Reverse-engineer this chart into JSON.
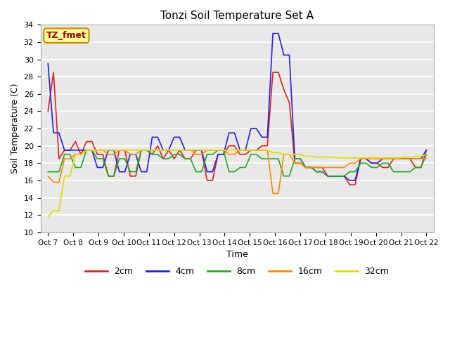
{
  "title": "Tonzi Soil Temperature Set A",
  "xlabel": "Time",
  "ylabel": "Soil Temperature (C)",
  "ylim": [
    10,
    34
  ],
  "yticks": [
    10,
    12,
    14,
    16,
    18,
    20,
    22,
    24,
    26,
    28,
    30,
    32,
    34
  ],
  "background_color": "#e8e8e8",
  "annotation_text": "TZ_fmet",
  "annotation_bg": "#ffff99",
  "annotation_border": "#cc8800",
  "annotation_text_color": "#990000",
  "x_labels": [
    "Oct 7",
    "Oct 8",
    "Oct 9",
    "Oct 10",
    "Oct 11",
    "Oct 12",
    "Oct 13",
    "Oct 14",
    "Oct 15",
    "Oct 16",
    "Oct 17",
    "Oct 18",
    "Oct 19",
    "Oct 20",
    "Oct 21",
    "Oct 22"
  ],
  "series": {
    "2cm": {
      "color": "#dd2222",
      "lw": 1.2
    },
    "4cm": {
      "color": "#2222dd",
      "lw": 1.2
    },
    "8cm": {
      "color": "#22aa22",
      "lw": 1.2
    },
    "16cm": {
      "color": "#ff8800",
      "lw": 1.2
    },
    "32cm": {
      "color": "#dddd00",
      "lw": 1.2
    }
  },
  "data_2cm": [
    24.0,
    28.5,
    18.5,
    19.5,
    19.5,
    20.5,
    19.0,
    20.5,
    20.5,
    19.0,
    19.0,
    16.5,
    16.5,
    19.5,
    19.5,
    16.5,
    16.5,
    19.5,
    19.5,
    19.0,
    20.0,
    18.5,
    19.5,
    18.5,
    19.5,
    18.5,
    18.5,
    19.5,
    19.5,
    16.0,
    16.0,
    19.0,
    19.0,
    20.0,
    20.0,
    19.0,
    19.0,
    19.5,
    19.5,
    20.0,
    20.0,
    28.5,
    28.5,
    26.5,
    25.0,
    18.0,
    18.0,
    17.5,
    17.5,
    17.5,
    17.5,
    16.5,
    16.5,
    16.5,
    16.5,
    15.5,
    15.5,
    18.5,
    18.5,
    18.0,
    18.0,
    17.5,
    17.5,
    18.5,
    18.5,
    18.5,
    18.5,
    17.5,
    17.5,
    19.5
  ],
  "data_4cm": [
    29.5,
    21.5,
    21.5,
    19.5,
    19.5,
    19.5,
    19.5,
    19.5,
    19.5,
    17.5,
    17.5,
    19.5,
    19.5,
    17.0,
    17.0,
    19.0,
    19.0,
    17.0,
    17.0,
    21.0,
    21.0,
    19.5,
    19.5,
    21.0,
    21.0,
    19.5,
    19.5,
    19.5,
    19.5,
    17.0,
    17.0,
    19.0,
    19.0,
    21.5,
    21.5,
    19.5,
    19.5,
    22.0,
    22.0,
    21.0,
    21.0,
    33.0,
    33.0,
    30.5,
    30.5,
    18.5,
    18.5,
    17.5,
    17.5,
    17.0,
    17.0,
    16.5,
    16.5,
    16.5,
    16.5,
    16.0,
    16.0,
    18.5,
    18.5,
    18.0,
    18.0,
    18.5,
    18.5,
    18.5,
    18.5,
    18.5,
    18.5,
    18.5,
    18.5,
    19.5
  ],
  "data_8cm": [
    17.0,
    17.0,
    17.0,
    19.0,
    19.0,
    17.5,
    17.5,
    19.5,
    19.5,
    18.5,
    18.5,
    16.5,
    16.5,
    18.5,
    18.5,
    17.0,
    17.0,
    19.5,
    19.5,
    19.0,
    19.0,
    18.5,
    18.5,
    19.0,
    19.0,
    18.5,
    18.5,
    17.0,
    17.0,
    19.0,
    19.0,
    19.5,
    19.5,
    17.0,
    17.0,
    17.5,
    17.5,
    19.0,
    19.0,
    18.5,
    18.5,
    18.5,
    18.5,
    16.5,
    16.5,
    18.5,
    18.5,
    17.5,
    17.5,
    17.0,
    17.0,
    16.5,
    16.5,
    16.5,
    16.5,
    17.0,
    17.0,
    18.0,
    18.0,
    17.5,
    17.5,
    18.0,
    18.0,
    17.0,
    17.0,
    17.0,
    17.0,
    17.5,
    17.5,
    19.0
  ],
  "data_16cm": [
    16.5,
    15.8,
    15.8,
    18.5,
    18.5,
    19.0,
    19.0,
    19.5,
    19.5,
    19.5,
    19.5,
    19.0,
    19.0,
    19.5,
    19.5,
    19.0,
    19.0,
    19.5,
    19.5,
    19.5,
    19.5,
    19.5,
    19.5,
    19.5,
    19.5,
    19.5,
    19.5,
    19.0,
    19.0,
    19.5,
    19.5,
    19.5,
    19.5,
    19.0,
    19.0,
    19.5,
    19.5,
    19.5,
    19.5,
    19.5,
    19.5,
    14.5,
    14.5,
    19.0,
    19.0,
    18.0,
    18.0,
    17.5,
    17.5,
    17.5,
    17.5,
    17.5,
    17.5,
    17.5,
    17.5,
    18.0,
    18.0,
    18.5,
    18.5,
    18.5,
    18.5,
    18.5,
    18.5,
    18.5,
    18.5,
    18.5,
    18.5,
    18.5,
    18.5,
    18.5
  ],
  "data_32cm": [
    11.8,
    12.5,
    12.5,
    16.5,
    16.5,
    19.0,
    19.0,
    19.5,
    19.5,
    19.5,
    19.5,
    19.5,
    19.5,
    19.5,
    19.5,
    19.5,
    19.5,
    19.5,
    19.5,
    19.5,
    19.5,
    19.5,
    19.5,
    19.5,
    19.5,
    19.5,
    19.5,
    19.5,
    19.5,
    19.5,
    19.5,
    19.5,
    19.5,
    19.5,
    19.5,
    19.5,
    19.5,
    19.5,
    19.5,
    19.5,
    19.5,
    19.2,
    19.2,
    19.0,
    19.0,
    19.0,
    19.0,
    18.8,
    18.8,
    18.7,
    18.7,
    18.7,
    18.7,
    18.6,
    18.6,
    18.6,
    18.6,
    18.6,
    18.6,
    18.6,
    18.6,
    18.6,
    18.6,
    18.6,
    18.6,
    18.7,
    18.7,
    18.8,
    18.8,
    19.0
  ]
}
